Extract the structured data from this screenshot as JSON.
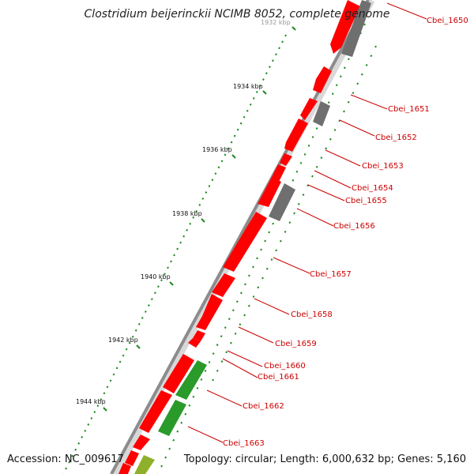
{
  "title": "Clostridium beijerinckii NCIMB 8052, complete genome",
  "footer": {
    "accession": "Accession: NC_009617",
    "topology": "Topology: circular; Length: 6,000,632 bp; Genes: 5,160"
  },
  "colors": {
    "forward_gene": "#ff0000",
    "other_gene": "#6f6f6f",
    "rna_gene": "#2a9a2a",
    "olive_gene": "#8fb02a",
    "backbone": "#9a9a9a",
    "ticks": "#1e8a1e",
    "label": "#cc0000"
  },
  "scale_labels": [
    "1932 kbp",
    "1934 kbp",
    "1936 kbp",
    "1938 kbp",
    "1940 kbp",
    "1942 kbp",
    "1944 kbp"
  ],
  "genes": [
    {
      "id": "Cbei_1650"
    },
    {
      "id": "Cbei_1651"
    },
    {
      "id": "Cbei_1652"
    },
    {
      "id": "Cbei_1653"
    },
    {
      "id": "Cbei_1654"
    },
    {
      "id": "Cbei_1655"
    },
    {
      "id": "Cbei_1656"
    },
    {
      "id": "Cbei_1657"
    },
    {
      "id": "Cbei_1658"
    },
    {
      "id": "Cbei_1659"
    },
    {
      "id": "Cbei_1660"
    },
    {
      "id": "Cbei_1661"
    },
    {
      "id": "Cbei_1662"
    },
    {
      "id": "Cbei_1663"
    }
  ]
}
